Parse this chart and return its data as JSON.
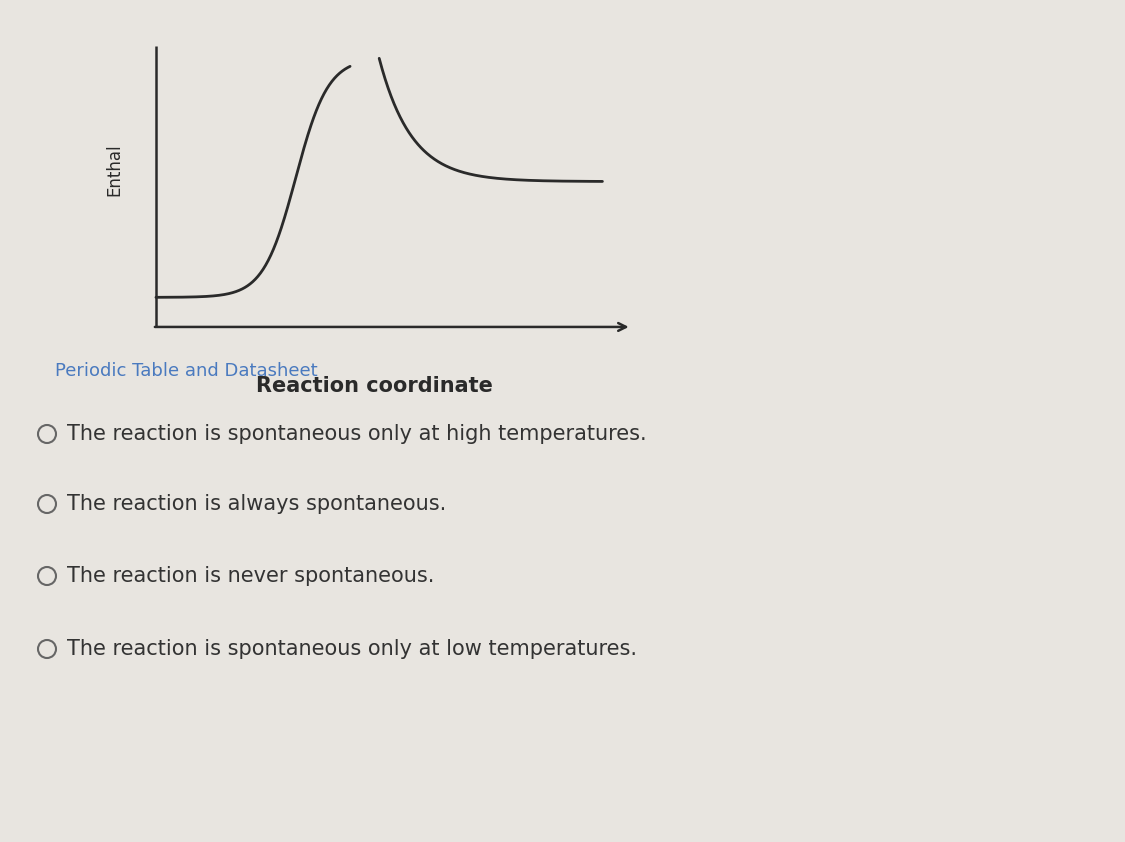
{
  "background_color": "#e8e5e0",
  "xlabel": "Reaction coordinate",
  "ylabel": "Enthal",
  "xlabel_fontsize": 15,
  "ylabel_fontsize": 12,
  "link_text": "Periodic Table and Datasheet",
  "link_color": "#4a7abf",
  "link_fontsize": 13,
  "options": [
    "The reaction is spontaneous only at high temperatures.",
    "The reaction is always spontaneous.",
    "The reaction is never spontaneous.",
    "The reaction is spontaneous only at low temperatures."
  ],
  "option_fontsize": 15,
  "line_color": "#2a2a2a",
  "line_width": 2.0,
  "axis_color": "#2a2a2a",
  "text_color": "#333333",
  "circle_color": "#666666"
}
